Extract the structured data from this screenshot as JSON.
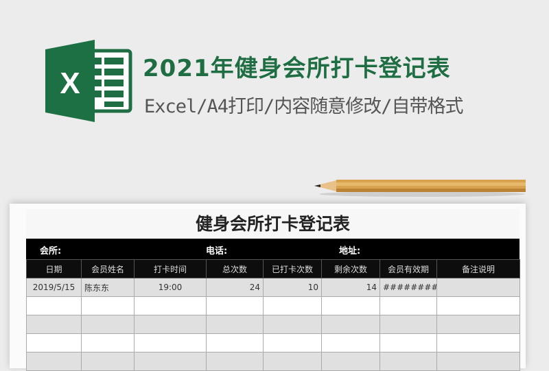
{
  "header": {
    "title": "2021年健身会所打卡登记表",
    "subtitle": "Excel/A4打印/内容随意修改/自带格式",
    "logo_letter": "X",
    "brand_color": "#1f6e43"
  },
  "sheet": {
    "title": "健身会所打卡登记表",
    "info": {
      "club": "会所:",
      "phone": "电话:",
      "address": "地址:"
    },
    "columns": [
      "日期",
      "会员姓名",
      "打卡时间",
      "总次数",
      "已打卡次数",
      "剩余次数",
      "会员有效期",
      "备注说明"
    ],
    "rows": [
      [
        "2019/5/15",
        "陈东东",
        "19:00",
        "24",
        "10",
        "14",
        "########",
        ""
      ]
    ]
  }
}
